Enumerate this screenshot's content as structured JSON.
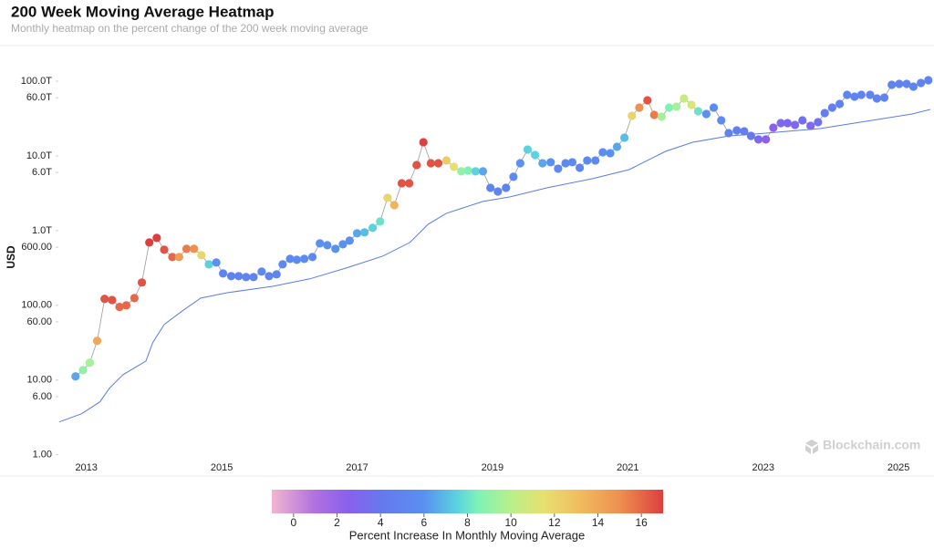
{
  "chart_data": {
    "type": "scatter",
    "title": "200 Week Moving Average Heatmap",
    "subtitle": "Monthly heatmap on the percent change of the 200 week moving average",
    "y_label": "USD",
    "watermark": "Blockchain.com",
    "log_y": true,
    "xlim": [
      2012.6,
      2025.47
    ],
    "xticks": [
      2013,
      2015,
      2017,
      2019,
      2021,
      2023,
      2025
    ],
    "ylim": [
      0.55,
      260000
    ],
    "yticks": [
      {
        "value": 1,
        "label": "1.00"
      },
      {
        "value": 6,
        "label": "6.00"
      },
      {
        "value": 10,
        "label": "10.00"
      },
      {
        "value": 60,
        "label": "60.00"
      },
      {
        "value": 100,
        "label": "100.00"
      },
      {
        "value": 600,
        "label": "600.00"
      },
      {
        "value": 1000,
        "label": "1.0T"
      },
      {
        "value": 6000,
        "label": "6.0T"
      },
      {
        "value": 10000,
        "label": "10.0T"
      },
      {
        "value": 60000,
        "label": "60.0T"
      },
      {
        "value": 100000,
        "label": "100.0T"
      }
    ],
    "price_color": "#9a9a9a",
    "x": [
      2012.84,
      2012.95,
      2013.05,
      2013.16,
      2013.27,
      2013.38,
      2013.49,
      2013.59,
      2013.71,
      2013.82,
      2013.93,
      2014.04,
      2014.15,
      2014.27,
      2014.37,
      2014.48,
      2014.59,
      2014.7,
      2014.81,
      2014.92,
      2015.02,
      2015.14,
      2015.25,
      2015.36,
      2015.47,
      2015.59,
      2015.7,
      2015.81,
      2015.9,
      2016.01,
      2016.11,
      2016.22,
      2016.34,
      2016.45,
      2016.56,
      2016.68,
      2016.79,
      2016.89,
      2017.0,
      2017.11,
      2017.23,
      2017.34,
      2017.45,
      2017.55,
      2017.66,
      2017.77,
      2017.88,
      2017.98,
      2018.09,
      2018.2,
      2018.32,
      2018.43,
      2018.54,
      2018.64,
      2018.75,
      2018.86,
      2018.97,
      2019.08,
      2019.2,
      2019.31,
      2019.41,
      2019.52,
      2019.63,
      2019.74,
      2019.86,
      2019.97,
      2020.08,
      2020.18,
      2020.29,
      2020.4,
      2020.52,
      2020.63,
      2020.74,
      2020.84,
      2020.95,
      2021.06,
      2021.17,
      2021.29,
      2021.39,
      2021.5,
      2021.61,
      2021.72,
      2021.83,
      2021.94,
      2022.04,
      2022.16,
      2022.27,
      2022.38,
      2022.49,
      2022.61,
      2022.72,
      2022.82,
      2022.93,
      2023.04,
      2023.15,
      2023.26,
      2023.36,
      2023.47,
      2023.58,
      2023.7,
      2023.81,
      2023.91,
      2024.02,
      2024.13,
      2024.24,
      2024.35,
      2024.45,
      2024.58,
      2024.68,
      2024.79,
      2024.9,
      2025.01,
      2025.12,
      2025.22,
      2025.33,
      2025.44
    ],
    "values": [
      11.2,
      13.6,
      17.1,
      33.5,
      122,
      118,
      95,
      100,
      125,
      202,
      694,
      799,
      554,
      443,
      443,
      570,
      570,
      469,
      354,
      374,
      267,
      246,
      246,
      239,
      239,
      283,
      246,
      260,
      354,
      419,
      407,
      419,
      443,
      675,
      638,
      570,
      656,
      735,
      919,
      946,
      1089,
      1324,
      2748,
      2193,
      4305,
      4305,
      7551,
      15240,
      7983,
      7983,
      8690,
      7140,
      6210,
      6380,
      6210,
      6210,
      3740,
      3340,
      3740,
      5250,
      7983,
      12170,
      10280,
      7983,
      8220,
      6750,
      7983,
      8220,
      6940,
      8690,
      8690,
      11190,
      10880,
      13240,
      17540,
      34440,
      44270,
      55410,
      35400,
      33430,
      44270,
      45600,
      58610,
      48190,
      39600,
      36390,
      44270,
      29920,
      20180,
      21950,
      21330,
      18540,
      16600,
      16600,
      23880,
      27480,
      27480,
      26000,
      29920,
      25230,
      28250,
      37410,
      44270,
      49550,
      65610,
      62090,
      65610,
      65610,
      58610,
      60260,
      89330,
      91840,
      91840,
      84530,
      94620,
      102800
    ],
    "heat": [
      6.5,
      9,
      9.5,
      14,
      16.5,
      16.5,
      16,
      16,
      16,
      16.5,
      17,
      17,
      16.5,
      16,
      14.5,
      15.5,
      15,
      12,
      7.5,
      6,
      5,
      5,
      5,
      5,
      5,
      5.5,
      5,
      5,
      5.5,
      5.5,
      5.5,
      5.5,
      5.5,
      6,
      6,
      6,
      6,
      6,
      6.5,
      7,
      7.5,
      8,
      12,
      13.5,
      16.5,
      16.5,
      16.5,
      17,
      16.5,
      16.5,
      12.5,
      11.5,
      9,
      8.5,
      7.5,
      6.5,
      5,
      5,
      5,
      5.5,
      6,
      7.5,
      7.5,
      6.5,
      6,
      5.5,
      5.5,
      5.5,
      5,
      5.5,
      5.5,
      6,
      6,
      6.5,
      7,
      12,
      15,
      16.5,
      15.5,
      9.5,
      8.5,
      9.5,
      10.5,
      11,
      8,
      6,
      5.5,
      5.5,
      5,
      4.5,
      4.5,
      4,
      3,
      2.5,
      2.5,
      3,
      3,
      3,
      3.5,
      3,
      3.5,
      4.5,
      4.5,
      5,
      5,
      5,
      5,
      5,
      5,
      5,
      5,
      5,
      5,
      5,
      5,
      5
    ],
    "moving_average": {
      "color": "#5b7be8",
      "x": [
        2012.6,
        2012.93,
        2013.2,
        2013.34,
        2013.54,
        2013.88,
        2013.98,
        2014.15,
        2014.42,
        2014.69,
        2015.09,
        2015.76,
        2016.3,
        2016.84,
        2017.38,
        2017.78,
        2018.05,
        2018.32,
        2018.86,
        2019.26,
        2019.81,
        2020.48,
        2021.02,
        2021.29,
        2021.56,
        2021.96,
        2022.5,
        2023.04,
        2023.85,
        2024.52,
        2025.2,
        2025.47
      ],
      "values": [
        2.75,
        3.54,
        5.1,
        7.77,
        11.8,
        18.0,
        31.6,
        55.4,
        84.5,
        125,
        148,
        180,
        226,
        316,
        456,
        694,
        1217,
        1706,
        2455,
        2826,
        3740,
        4955,
        6560,
        8690,
        11510,
        15240,
        18540,
        20180,
        23240,
        29040,
        36390,
        41880
      ]
    },
    "colorbar": {
      "title": "Percent Increase In Monthly Moving Average",
      "lim": [
        -1,
        17
      ],
      "ticks": [
        0,
        2,
        4,
        6,
        8,
        10,
        12,
        14,
        16
      ],
      "colorscale": [
        [
          -1,
          "#f2b6cf"
        ],
        [
          1,
          "#b070e0"
        ],
        [
          2.5,
          "#8a60ee"
        ],
        [
          4,
          "#6678ee"
        ],
        [
          6,
          "#5a90f0"
        ],
        [
          7.5,
          "#5ad2df"
        ],
        [
          8.5,
          "#7ef2b6"
        ],
        [
          10,
          "#b8f08a"
        ],
        [
          11.5,
          "#e6e070"
        ],
        [
          13,
          "#f0c060"
        ],
        [
          15,
          "#ee9050"
        ],
        [
          17,
          "#dd3f3f"
        ]
      ]
    }
  }
}
